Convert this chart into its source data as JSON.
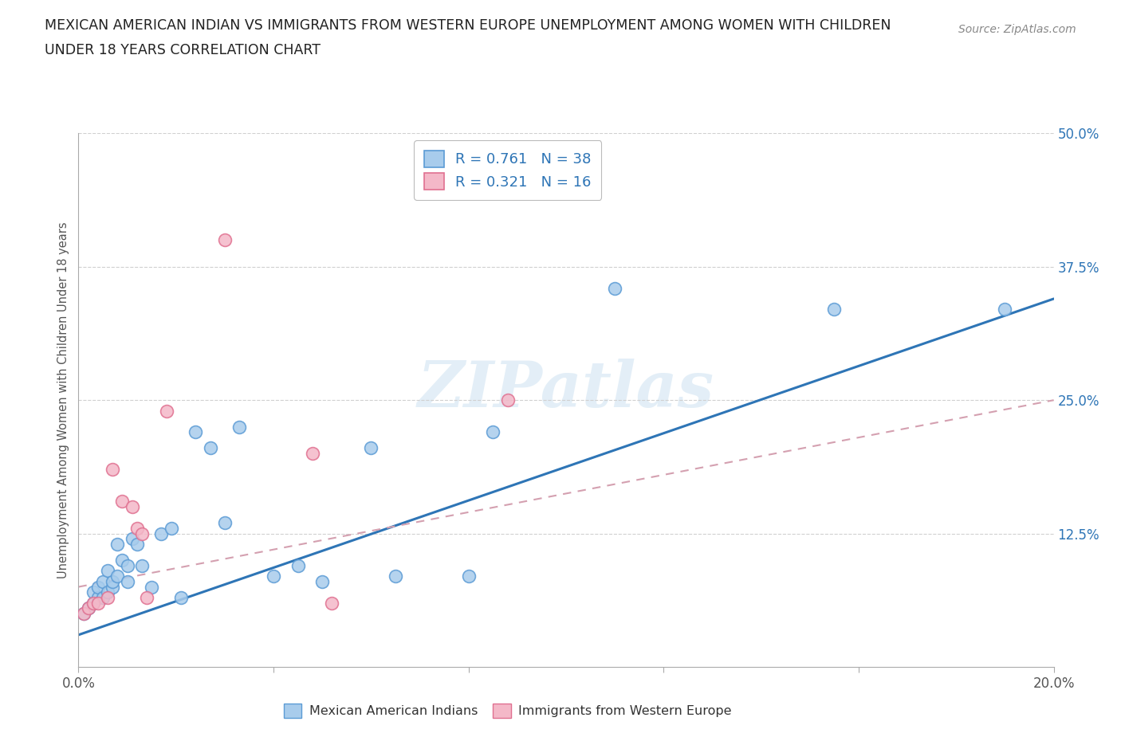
{
  "title_line1": "MEXICAN AMERICAN INDIAN VS IMMIGRANTS FROM WESTERN EUROPE UNEMPLOYMENT AMONG WOMEN WITH CHILDREN",
  "title_line2": "UNDER 18 YEARS CORRELATION CHART",
  "source": "Source: ZipAtlas.com",
  "ylabel": "Unemployment Among Women with Children Under 18 years",
  "watermark": "ZIPatlas",
  "legend_blue_r": "0.761",
  "legend_blue_n": "38",
  "legend_pink_r": "0.321",
  "legend_pink_n": "16",
  "legend_blue_label": "Mexican American Indians",
  "legend_pink_label": "Immigrants from Western Europe",
  "blue_scatter_x": [
    0.001,
    0.002,
    0.003,
    0.003,
    0.004,
    0.004,
    0.005,
    0.005,
    0.006,
    0.006,
    0.007,
    0.007,
    0.008,
    0.008,
    0.009,
    0.01,
    0.01,
    0.011,
    0.012,
    0.013,
    0.015,
    0.017,
    0.019,
    0.021,
    0.024,
    0.027,
    0.03,
    0.033,
    0.04,
    0.045,
    0.05,
    0.06,
    0.065,
    0.08,
    0.085,
    0.11,
    0.155,
    0.19
  ],
  "blue_scatter_y": [
    0.05,
    0.055,
    0.06,
    0.07,
    0.065,
    0.075,
    0.065,
    0.08,
    0.07,
    0.09,
    0.075,
    0.08,
    0.085,
    0.115,
    0.1,
    0.095,
    0.08,
    0.12,
    0.115,
    0.095,
    0.075,
    0.125,
    0.13,
    0.065,
    0.22,
    0.205,
    0.135,
    0.225,
    0.085,
    0.095,
    0.08,
    0.205,
    0.085,
    0.085,
    0.22,
    0.355,
    0.335,
    0.335
  ],
  "pink_scatter_x": [
    0.001,
    0.002,
    0.003,
    0.004,
    0.006,
    0.007,
    0.009,
    0.011,
    0.012,
    0.013,
    0.014,
    0.018,
    0.03,
    0.048,
    0.052,
    0.088
  ],
  "pink_scatter_y": [
    0.05,
    0.055,
    0.06,
    0.06,
    0.065,
    0.185,
    0.155,
    0.15,
    0.13,
    0.125,
    0.065,
    0.24,
    0.4,
    0.2,
    0.06,
    0.25
  ],
  "blue_line_x0": 0.0,
  "blue_line_x1": 0.2,
  "blue_line_y0": 0.03,
  "blue_line_y1": 0.345,
  "pink_line_x0": 0.0,
  "pink_line_x1": 0.2,
  "pink_line_y0": 0.075,
  "pink_line_y1": 0.25,
  "x_min": 0.0,
  "x_max": 0.2,
  "y_min": 0.0,
  "y_max": 0.5,
  "x_ticks": [
    0.0,
    0.04,
    0.08,
    0.12,
    0.16,
    0.2
  ],
  "x_tick_labels": [
    "0.0%",
    "",
    "",
    "",
    "",
    "20.0%"
  ],
  "y_ticks": [
    0.125,
    0.25,
    0.375,
    0.5
  ],
  "y_tick_labels": [
    "12.5%",
    "25.0%",
    "37.5%",
    "50.0%"
  ],
  "blue_color": "#a8ccec",
  "blue_edge_color": "#5b9bd5",
  "pink_color": "#f4b8c8",
  "pink_edge_color": "#e07090",
  "blue_line_color": "#2e75b6",
  "pink_line_color": "#d4a0b0",
  "grid_color": "#d0d0d0",
  "tick_color": "#aaaaaa",
  "background_color": "#ffffff",
  "title_color": "#222222",
  "ylabel_color": "#555555",
  "ytick_color": "#2e75b6",
  "xtick_color": "#555555",
  "source_color": "#888888",
  "watermark_color": "#c8dff0",
  "legend_label_color": "#2e75b6"
}
